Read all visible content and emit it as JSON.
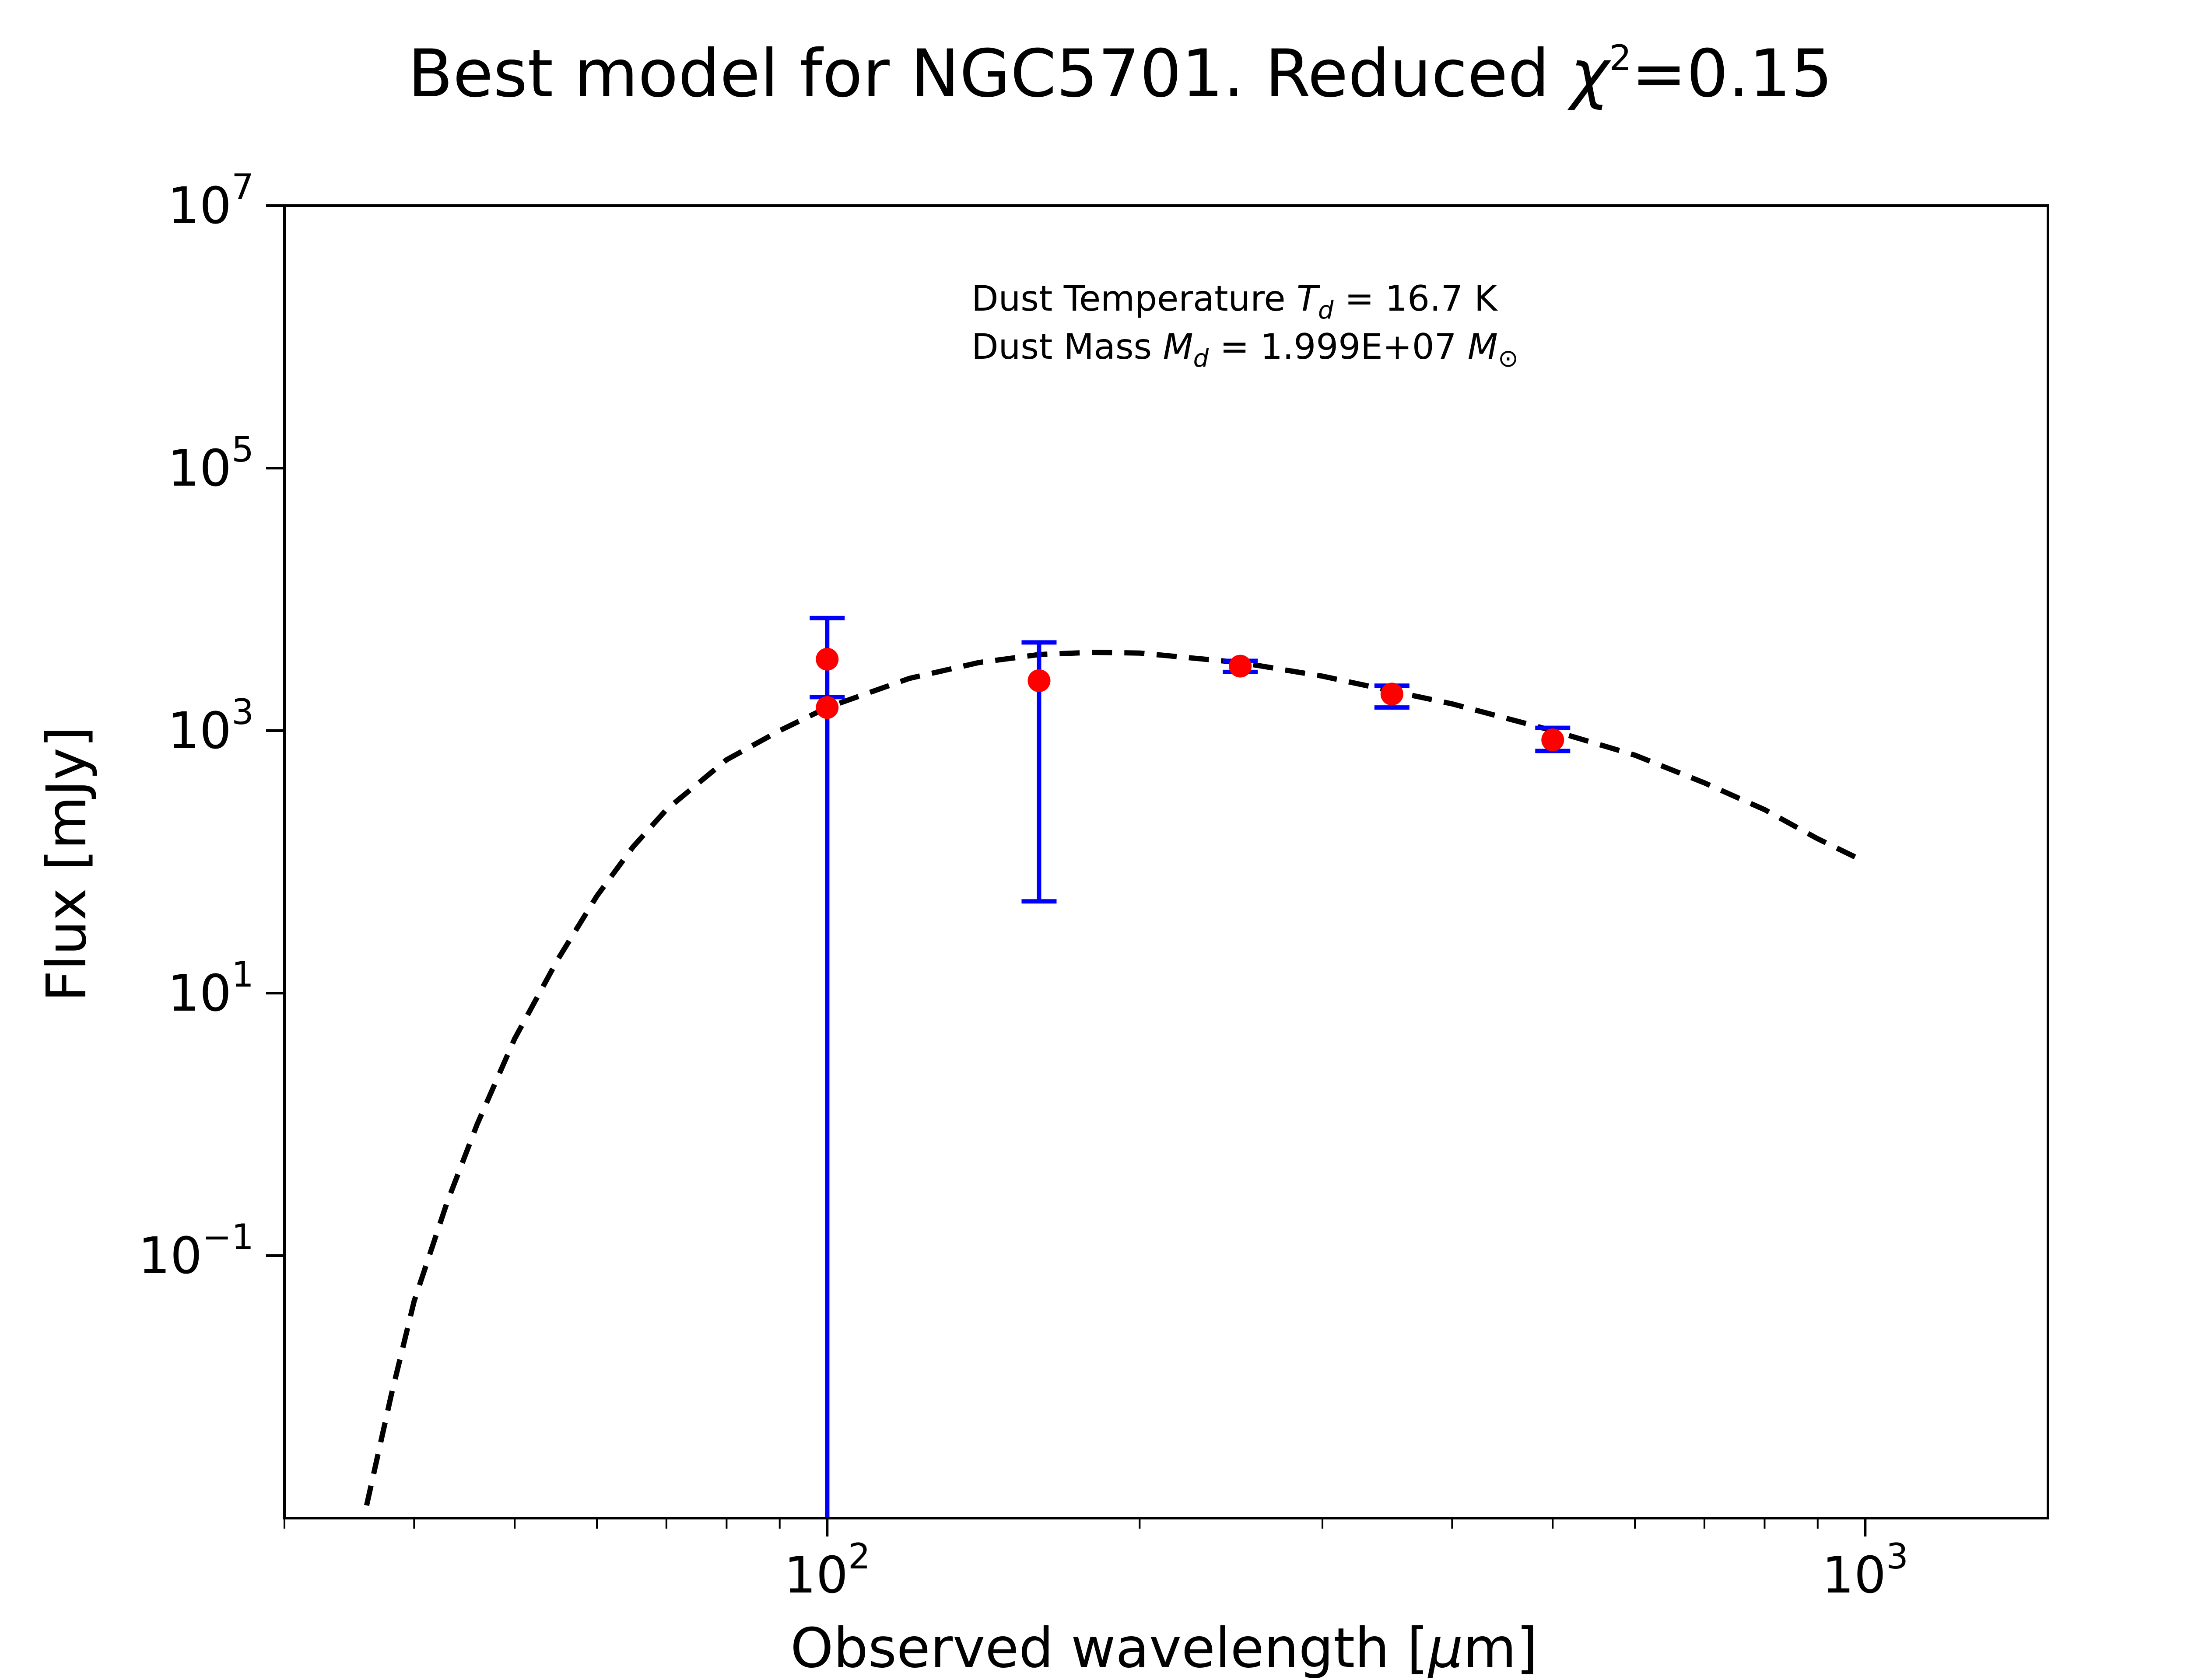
{
  "chart_data": {
    "type": "scatter",
    "title": {
      "prefix": "Best model for NGC5701. Reduced ",
      "chi": "χ",
      "sup": "2",
      "suffix": "=0.15"
    },
    "xlabel": {
      "prefix": "Observed wavelength [",
      "mu": "μ",
      "suffix": "m]"
    },
    "ylabel": "Flux [mJy]",
    "xscale": "log",
    "yscale": "log",
    "xlim": [
      30,
      1500
    ],
    "ylim": [
      0.001,
      10000000
    ],
    "x_ticks": [
      {
        "value": 100,
        "base": "10",
        "exp": "2"
      },
      {
        "value": 1000,
        "base": "10",
        "exp": "3"
      }
    ],
    "y_ticks": [
      {
        "value": 0.1,
        "base": "10",
        "exp": "−1"
      },
      {
        "value": 10,
        "base": "10",
        "exp": "1"
      },
      {
        "value": 1000,
        "base": "10",
        "exp": "3"
      },
      {
        "value": 100000,
        "base": "10",
        "exp": "5"
      },
      {
        "value": 10000000,
        "base": "10",
        "exp": "7"
      }
    ],
    "grid": false,
    "annotations": {
      "temperature": {
        "prefix": "Dust Temperature ",
        "symbol": "T",
        "sub": "d",
        "suffix": " = 16.7 K"
      },
      "mass": {
        "prefix": "Dust Mass ",
        "symbol": "M",
        "sub": "d",
        "middle": " = 1.999E+07 ",
        "unit_symbol": "M",
        "unit_sub": "⊙"
      }
    },
    "model_curve": {
      "style": "dashed",
      "color": "#000000",
      "points": [
        [
          36,
          0.00125
        ],
        [
          38,
          0.0085
        ],
        [
          40,
          0.045
        ],
        [
          43,
          0.25
        ],
        [
          46,
          1.0
        ],
        [
          50,
          4.5
        ],
        [
          55,
          18
        ],
        [
          60,
          55
        ],
        [
          65,
          130
        ],
        [
          70,
          250
        ],
        [
          80,
          600
        ],
        [
          90,
          1000
        ],
        [
          100,
          1500
        ],
        [
          120,
          2500
        ],
        [
          140,
          3300
        ],
        [
          160,
          3800
        ],
        [
          180,
          3950
        ],
        [
          200,
          3900
        ],
        [
          250,
          3300
        ],
        [
          300,
          2600
        ],
        [
          350,
          2000
        ],
        [
          400,
          1600
        ],
        [
          500,
          1000
        ],
        [
          600,
          650
        ],
        [
          700,
          400
        ],
        [
          800,
          250
        ],
        [
          900,
          150
        ],
        [
          1000,
          100
        ]
      ]
    },
    "observations": {
      "marker_color": "#ff0000",
      "errorbar_color": "#0000ff",
      "points": [
        {
          "x": 100,
          "y": 1500,
          "err_low": 1500,
          "err_high": 300
        },
        {
          "x": 100,
          "y": 3500,
          "err_low": 3500,
          "err_high": 3700
        },
        {
          "x": 160,
          "y": 2400,
          "err_low": 2350,
          "err_high": 2300
        },
        {
          "x": 250,
          "y": 3100,
          "err_low": 300,
          "err_high": 300
        },
        {
          "x": 350,
          "y": 1900,
          "err_low": 400,
          "err_high": 300
        },
        {
          "x": 500,
          "y": 850,
          "err_low": 150,
          "err_high": 200
        }
      ]
    }
  }
}
